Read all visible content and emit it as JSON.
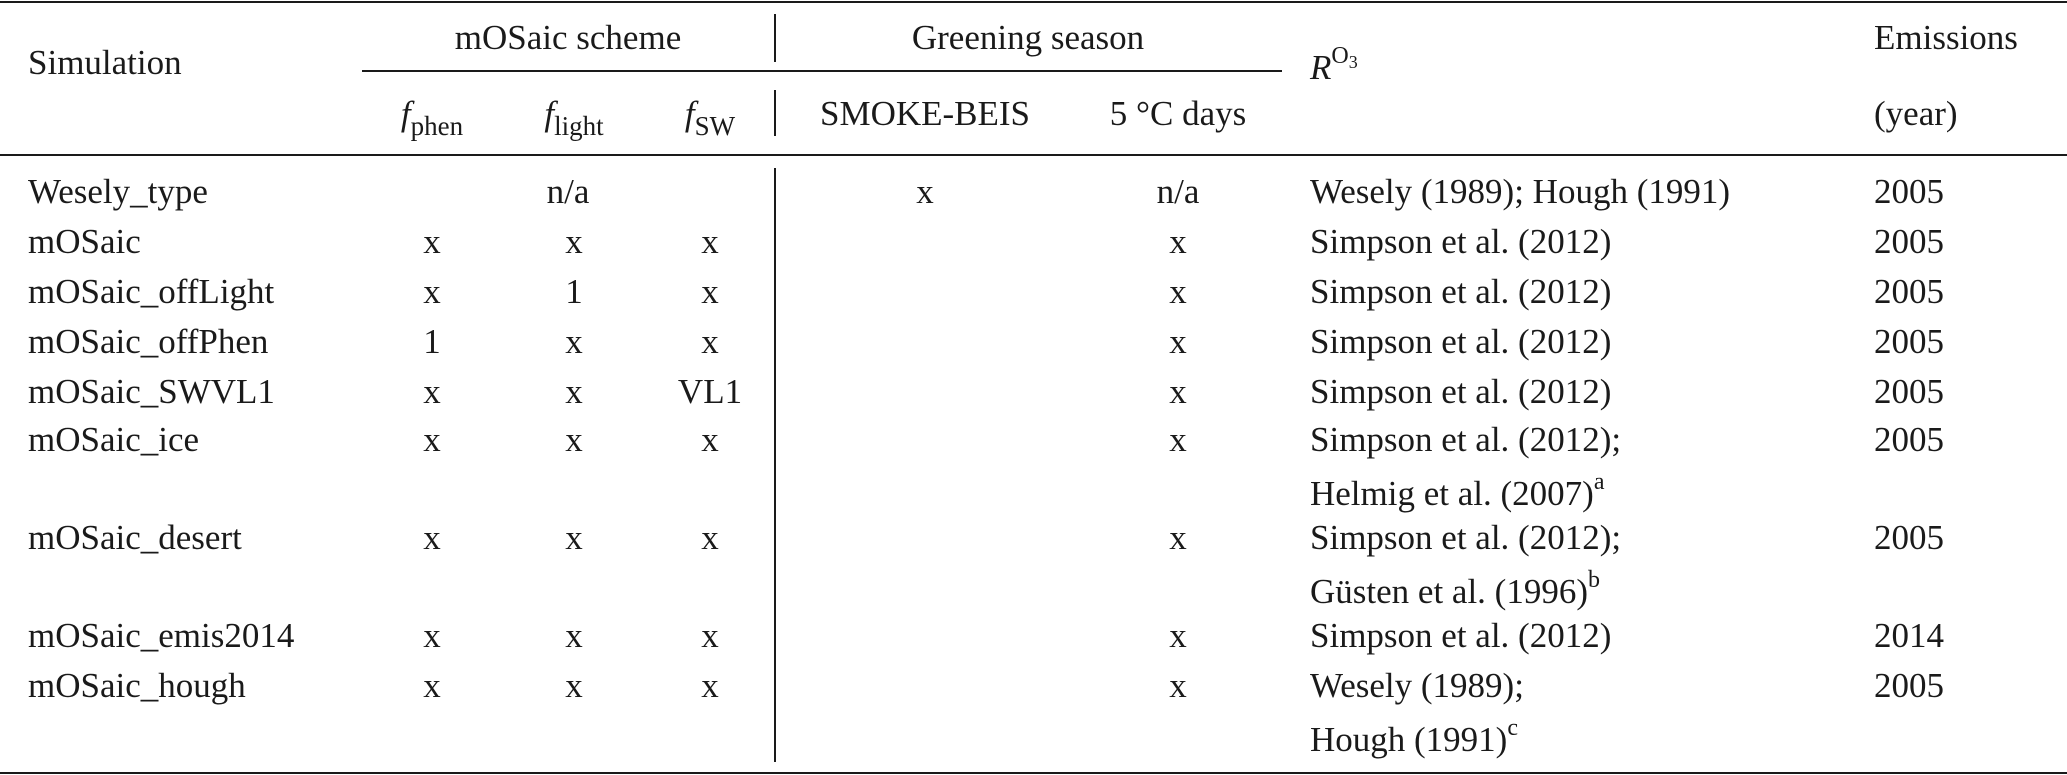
{
  "header": {
    "simulation": "Simulation",
    "mosaic_scheme": "mOSaic scheme",
    "greening_season": "Greening season",
    "r_symbol": "R",
    "r_sup": "O",
    "r_sup_sub": "3",
    "emissions": "Emissions",
    "emissions_year": "(year)",
    "f_letter": "f",
    "f_phen_sub": "phen",
    "f_light_sub": "light",
    "f_sw_sub": "SW",
    "smoke_beis": "SMOKE-BEIS",
    "five_c_days": "5 °C days"
  },
  "rows": [
    {
      "sim": "Wesely_type",
      "scheme_merged": "n/a",
      "smoke": "x",
      "fivec": "n/a",
      "r1": "Wesely (1989); Hough (1991)",
      "r2": "",
      "r2_sup": "",
      "emis": "2005"
    },
    {
      "sim": "mOSaic",
      "fphen": "x",
      "flight": "x",
      "fsw": "x",
      "smoke": "",
      "fivec": "x",
      "r1": "Simpson et al. (2012)",
      "r2": "",
      "r2_sup": "",
      "emis": "2005"
    },
    {
      "sim": "mOSaic_offLight",
      "fphen": "x",
      "flight": "1",
      "fsw": "x",
      "smoke": "",
      "fivec": "x",
      "r1": "Simpson et al. (2012)",
      "r2": "",
      "r2_sup": "",
      "emis": "2005"
    },
    {
      "sim": "mOSaic_offPhen",
      "fphen": "1",
      "flight": "x",
      "fsw": "x",
      "smoke": "",
      "fivec": "x",
      "r1": "Simpson et al. (2012)",
      "r2": "",
      "r2_sup": "",
      "emis": "2005"
    },
    {
      "sim": "mOSaic_SWVL1",
      "fphen": "x",
      "flight": "x",
      "fsw": "VL1",
      "smoke": "",
      "fivec": "x",
      "r1": "Simpson et al. (2012)",
      "r2": "",
      "r2_sup": "",
      "emis": "2005"
    },
    {
      "sim": "mOSaic_ice",
      "fphen": "x",
      "flight": "x",
      "fsw": "x",
      "smoke": "",
      "fivec": "x",
      "r1": "Simpson et al. (2012);",
      "r2": "Helmig et al. (2007)",
      "r2_sup": "a",
      "emis": "2005"
    },
    {
      "sim": "mOSaic_desert",
      "fphen": "x",
      "flight": "x",
      "fsw": "x",
      "smoke": "",
      "fivec": "x",
      "r1": "Simpson et al. (2012);",
      "r2": "Güsten et al. (1996)",
      "r2_sup": "b",
      "emis": "2005"
    },
    {
      "sim": "mOSaic_emis2014",
      "fphen": "x",
      "flight": "x",
      "fsw": "x",
      "smoke": "",
      "fivec": "x",
      "r1": "Simpson et al. (2012)",
      "r2": "",
      "r2_sup": "",
      "emis": "2014"
    },
    {
      "sim": "mOSaic_hough",
      "fphen": "x",
      "flight": "x",
      "fsw": "x",
      "smoke": "",
      "fivec": "x",
      "r1": "Wesely (1989);",
      "r2": "Hough (1991)",
      "r2_sup": "c",
      "emis": "2005"
    }
  ]
}
